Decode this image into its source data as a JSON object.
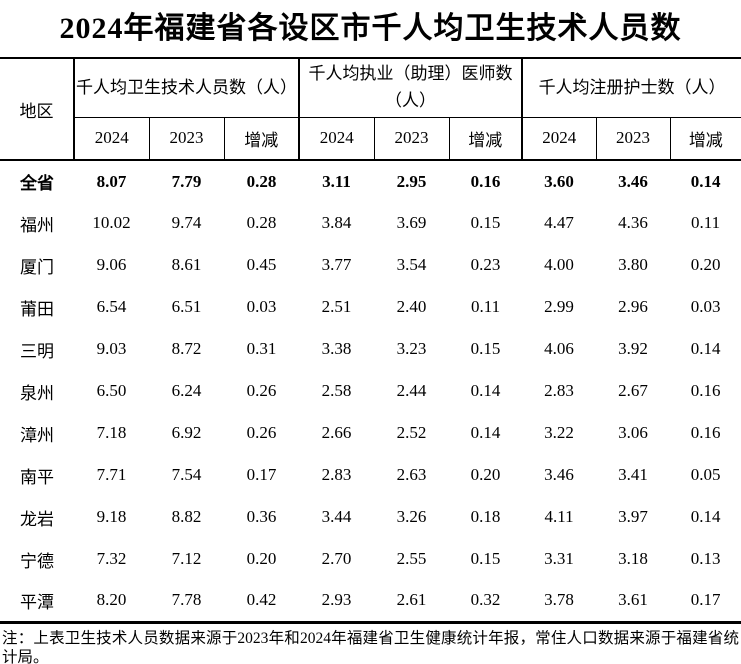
{
  "page": {
    "title": "2024年福建省各设区市千人均卫生技术人员数",
    "note": "注：上表卫生技术人员数据来源于2023年和2024年福建省卫生健康统计年报，常住人口数据来源于福建省统计局。"
  },
  "table": {
    "region_header": "地区",
    "groups": [
      {
        "label": "千人均卫生技术人员数（人）",
        "sub": [
          "2024",
          "2023",
          "增减"
        ]
      },
      {
        "label": "千人均执业（助理）医师数（人）",
        "sub": [
          "2024",
          "2023",
          "增减"
        ]
      },
      {
        "label": "千人均注册护士数（人）",
        "sub": [
          "2024",
          "2023",
          "增减"
        ]
      }
    ],
    "rows": [
      {
        "region": "全省",
        "bold": true,
        "values": [
          "8.07",
          "7.79",
          "0.28",
          "3.11",
          "2.95",
          "0.16",
          "3.60",
          "3.46",
          "0.14"
        ]
      },
      {
        "region": "福州",
        "bold": false,
        "values": [
          "10.02",
          "9.74",
          "0.28",
          "3.84",
          "3.69",
          "0.15",
          "4.47",
          "4.36",
          "0.11"
        ]
      },
      {
        "region": "厦门",
        "bold": false,
        "values": [
          "9.06",
          "8.61",
          "0.45",
          "3.77",
          "3.54",
          "0.23",
          "4.00",
          "3.80",
          "0.20"
        ]
      },
      {
        "region": "莆田",
        "bold": false,
        "values": [
          "6.54",
          "6.51",
          "0.03",
          "2.51",
          "2.40",
          "0.11",
          "2.99",
          "2.96",
          "0.03"
        ]
      },
      {
        "region": "三明",
        "bold": false,
        "values": [
          "9.03",
          "8.72",
          "0.31",
          "3.38",
          "3.23",
          "0.15",
          "4.06",
          "3.92",
          "0.14"
        ]
      },
      {
        "region": "泉州",
        "bold": false,
        "values": [
          "6.50",
          "6.24",
          "0.26",
          "2.58",
          "2.44",
          "0.14",
          "2.83",
          "2.67",
          "0.16"
        ]
      },
      {
        "region": "漳州",
        "bold": false,
        "values": [
          "7.18",
          "6.92",
          "0.26",
          "2.66",
          "2.52",
          "0.14",
          "3.22",
          "3.06",
          "0.16"
        ]
      },
      {
        "region": "南平",
        "bold": false,
        "values": [
          "7.71",
          "7.54",
          "0.17",
          "2.83",
          "2.63",
          "0.20",
          "3.46",
          "3.41",
          "0.05"
        ]
      },
      {
        "region": "龙岩",
        "bold": false,
        "values": [
          "9.18",
          "8.82",
          "0.36",
          "3.44",
          "3.26",
          "0.18",
          "4.11",
          "3.97",
          "0.14"
        ]
      },
      {
        "region": "宁德",
        "bold": false,
        "values": [
          "7.32",
          "7.12",
          "0.20",
          "2.70",
          "2.55",
          "0.15",
          "3.31",
          "3.18",
          "0.13"
        ]
      },
      {
        "region": "平潭",
        "bold": false,
        "values": [
          "8.20",
          "7.78",
          "0.42",
          "2.93",
          "2.61",
          "0.32",
          "3.78",
          "3.61",
          "0.17"
        ]
      }
    ]
  }
}
